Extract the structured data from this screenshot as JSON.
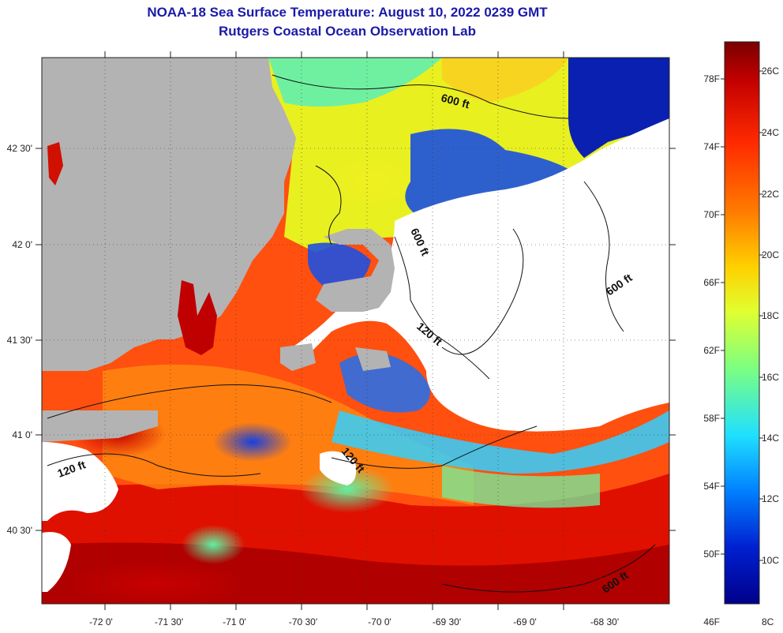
{
  "title": {
    "line1": "NOAA-18 Sea Surface Temperature:  August 10, 2022 0239 GMT",
    "line2": "Rutgers Coastal Ocean Observation Lab"
  },
  "map": {
    "longitude_ticks": [
      "-72 0'",
      "-71 30'",
      "-71 0'",
      "-70 30'",
      "-70 0'",
      "-69 30'",
      "-69 0'",
      "-68 30'"
    ],
    "latitude_ticks": [
      "42 30'",
      "42 0'",
      "41 30'",
      "41 0'",
      "40 30'"
    ],
    "contour_labels": [
      "600 ft",
      "600 ft",
      "600 ft",
      "120 ft",
      "120 ft",
      "120 ft",
      "600 ft"
    ],
    "land_color": "#b3b3b3",
    "cloud_color": "#ffffff"
  },
  "colorbar": {
    "fahrenheit_labels": [
      "78F",
      "74F",
      "70F",
      "66F",
      "62F",
      "58F",
      "54F",
      "50F",
      "46F"
    ],
    "celsius_labels": [
      "26C",
      "24C",
      "22C",
      "20C",
      "18C",
      "16C",
      "14C",
      "12C",
      "10C",
      "8C"
    ],
    "colors": [
      "#7a0000",
      "#c40000",
      "#ff2a00",
      "#ff7a00",
      "#ffd000",
      "#e0ff30",
      "#7dff80",
      "#20e0ff",
      "#0080ff",
      "#0020d0",
      "#00008a"
    ]
  }
}
